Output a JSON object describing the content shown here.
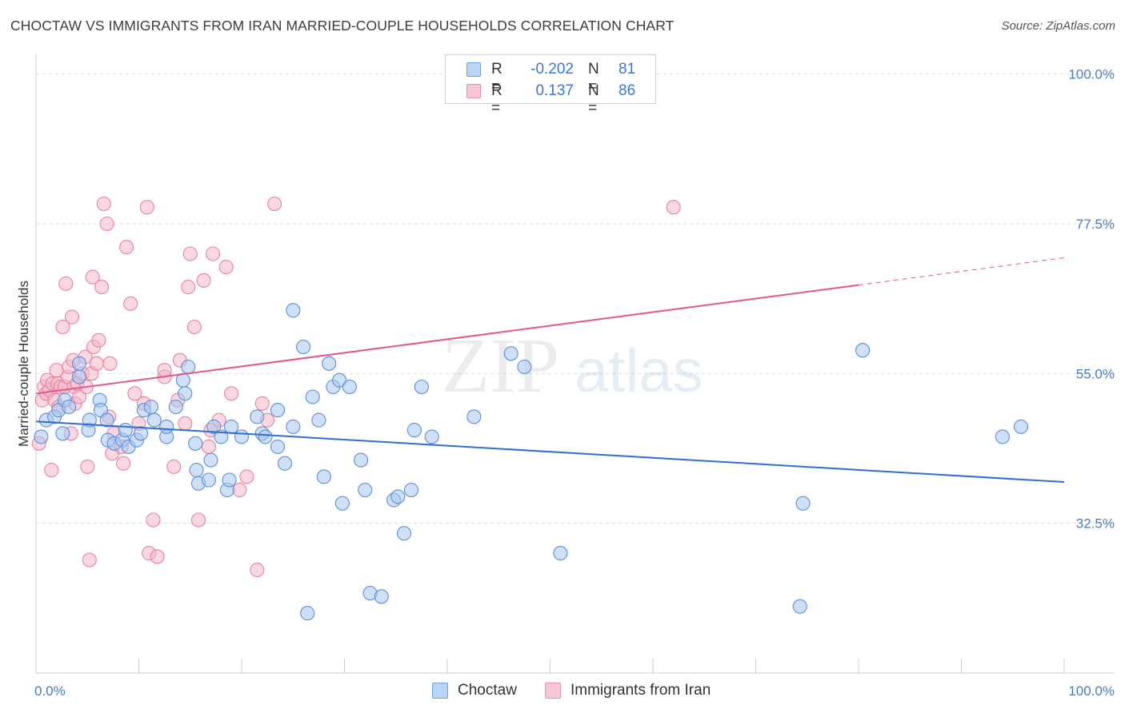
{
  "title": "CHOCTAW VS IMMIGRANTS FROM IRAN MARRIED-COUPLE HOUSEHOLDS CORRELATION CHART",
  "source": "Source: ZipAtlas.com",
  "watermark": {
    "zip": "ZIP",
    "atlas": "atlas"
  },
  "legend": {
    "r_label": "R =",
    "n_label": "N =",
    "rows": [
      {
        "r": "-0.202",
        "n": "81"
      },
      {
        "r": "0.137",
        "n": "86"
      }
    ]
  },
  "colors": {
    "choctaw_fill": "#a9c6ef",
    "choctaw_stroke": "#5b8fd9",
    "choctaw_line": "#2f6fd0",
    "iran_fill": "#f4b8cb",
    "iran_stroke": "#e7839f",
    "iran_line": "#e0588a",
    "axis_label": "#4a7ac7",
    "grid": "#dcdcdc"
  },
  "chart_data": {
    "type": "scatter",
    "xlabel": "",
    "ylabel": "Married-couple Households",
    "xlim": [
      0,
      100
    ],
    "ylim": [
      10,
      102
    ],
    "x_tick_labels": [
      "0.0%",
      "100.0%"
    ],
    "y_ticks": [
      {
        "value": 100,
        "label": "100.0%"
      },
      {
        "value": 77.5,
        "label": "77.5%"
      },
      {
        "value": 55,
        "label": "55.0%"
      },
      {
        "value": 32.5,
        "label": "32.5%"
      }
    ],
    "grid": "horizontal dashed",
    "series": [
      {
        "name": "Choctaw",
        "trend": {
          "x0": 0,
          "y0": 47.8,
          "x1": 100,
          "y1": 38.7
        },
        "points": [
          [
            0.5,
            45.5
          ],
          [
            1,
            48
          ],
          [
            1.8,
            48.5
          ],
          [
            2.2,
            49.5
          ],
          [
            2.6,
            46
          ],
          [
            2.8,
            51
          ],
          [
            3.2,
            50
          ],
          [
            4.2,
            54.5
          ],
          [
            4.2,
            56.5
          ],
          [
            5.1,
            46.5
          ],
          [
            5.2,
            48
          ],
          [
            6.2,
            51
          ],
          [
            6.3,
            49.5
          ],
          [
            6.9,
            48
          ],
          [
            7.0,
            45
          ],
          [
            7.6,
            44.5
          ],
          [
            8.4,
            45
          ],
          [
            8.7,
            46.5
          ],
          [
            9.0,
            44
          ],
          [
            9.8,
            45
          ],
          [
            10.2,
            46
          ],
          [
            10.5,
            49.5
          ],
          [
            11.2,
            50
          ],
          [
            11.5,
            48
          ],
          [
            12.7,
            45.5
          ],
          [
            12.7,
            47
          ],
          [
            13.6,
            50
          ],
          [
            14.5,
            52
          ],
          [
            14.8,
            56
          ],
          [
            14.3,
            54
          ],
          [
            15.5,
            44.5
          ],
          [
            15.6,
            40.5
          ],
          [
            15.8,
            38.5
          ],
          [
            17.0,
            42
          ],
          [
            16.8,
            39
          ],
          [
            17.3,
            47
          ],
          [
            18.0,
            45.5
          ],
          [
            18.6,
            37.5
          ],
          [
            18.8,
            39
          ],
          [
            19.0,
            47
          ],
          [
            20.0,
            45.5
          ],
          [
            21.5,
            48.5
          ],
          [
            22.0,
            46
          ],
          [
            22.3,
            45.5
          ],
          [
            23.5,
            44
          ],
          [
            23.5,
            49.5
          ],
          [
            24.2,
            41.5
          ],
          [
            25.0,
            64.5
          ],
          [
            25.0,
            47
          ],
          [
            26.0,
            59
          ],
          [
            26.4,
            19
          ],
          [
            26.9,
            51.5
          ],
          [
            27.5,
            48
          ],
          [
            28.0,
            39.5
          ],
          [
            28.5,
            56.5
          ],
          [
            28.9,
            53
          ],
          [
            29.5,
            54
          ],
          [
            29.8,
            35.5
          ],
          [
            30.5,
            53
          ],
          [
            31.6,
            42
          ],
          [
            32.0,
            37.5
          ],
          [
            32.5,
            22
          ],
          [
            33.6,
            21.5
          ],
          [
            34.8,
            36
          ],
          [
            35.2,
            36.5
          ],
          [
            35.8,
            31
          ],
          [
            36.5,
            37.5
          ],
          [
            36.8,
            46.5
          ],
          [
            37.5,
            53
          ],
          [
            38.5,
            45.5
          ],
          [
            42.6,
            48.5
          ],
          [
            46.2,
            58
          ],
          [
            47.5,
            56
          ],
          [
            51,
            28
          ],
          [
            74.3,
            20
          ],
          [
            74.6,
            35.5
          ],
          [
            80.4,
            58.5
          ],
          [
            94,
            45.5
          ],
          [
            95.8,
            47
          ]
        ]
      },
      {
        "name": "Immigrants from Iran",
        "trend": {
          "x0": 0,
          "y0": 52,
          "x1": 80,
          "y1": 68.3
        },
        "trend_extension": {
          "x0": 80,
          "y0": 68.3,
          "x1": 100,
          "y1": 72.4
        },
        "points": [
          [
            0.3,
            44.5
          ],
          [
            0.6,
            51
          ],
          [
            0.8,
            53
          ],
          [
            1.0,
            52
          ],
          [
            1.1,
            54
          ],
          [
            1.3,
            52.5
          ],
          [
            1.5,
            40.5
          ],
          [
            1.6,
            53.5
          ],
          [
            1.8,
            51
          ],
          [
            2.0,
            55.5
          ],
          [
            2.1,
            53.5
          ],
          [
            2.2,
            50
          ],
          [
            2.4,
            53
          ],
          [
            2.6,
            62
          ],
          [
            2.8,
            53
          ],
          [
            2.9,
            68.5
          ],
          [
            3.1,
            54.5
          ],
          [
            3.2,
            56
          ],
          [
            3.4,
            46
          ],
          [
            3.5,
            63.5
          ],
          [
            3.6,
            57
          ],
          [
            3.7,
            53
          ],
          [
            3.8,
            50.5
          ],
          [
            4.0,
            53.5
          ],
          [
            4.2,
            51.5
          ],
          [
            4.5,
            55
          ],
          [
            4.8,
            57.5
          ],
          [
            4.9,
            53
          ],
          [
            5.0,
            41
          ],
          [
            5.2,
            27
          ],
          [
            5.4,
            55
          ],
          [
            5.5,
            69.5
          ],
          [
            5.6,
            59
          ],
          [
            5.9,
            56.5
          ],
          [
            6.1,
            60
          ],
          [
            6.4,
            68
          ],
          [
            6.6,
            80.5
          ],
          [
            6.9,
            77.5
          ],
          [
            7.1,
            48.5
          ],
          [
            7.2,
            56.5
          ],
          [
            7.4,
            43
          ],
          [
            7.6,
            46
          ],
          [
            8.3,
            44
          ],
          [
            8.5,
            41.5
          ],
          [
            8.8,
            74
          ],
          [
            9.2,
            65.5
          ],
          [
            9.6,
            52
          ],
          [
            10.0,
            47.5
          ],
          [
            10.5,
            50.5
          ],
          [
            10.8,
            80
          ],
          [
            11.0,
            28
          ],
          [
            11.4,
            33
          ],
          [
            11.8,
            27.5
          ],
          [
            12.5,
            54.5
          ],
          [
            12.5,
            55.5
          ],
          [
            13.4,
            41
          ],
          [
            13.8,
            51
          ],
          [
            14.0,
            57
          ],
          [
            14.5,
            47.5
          ],
          [
            14.8,
            68
          ],
          [
            15.0,
            73
          ],
          [
            15.4,
            62
          ],
          [
            15.8,
            33
          ],
          [
            16.3,
            69
          ],
          [
            16.8,
            44
          ],
          [
            17.0,
            46.5
          ],
          [
            17.2,
            73
          ],
          [
            17.8,
            48
          ],
          [
            18.5,
            71
          ],
          [
            19.0,
            52
          ],
          [
            19.8,
            37.5
          ],
          [
            20.5,
            39.5
          ],
          [
            21.5,
            25.5
          ],
          [
            22.0,
            50.5
          ],
          [
            22.5,
            48
          ],
          [
            23.2,
            80.5
          ],
          [
            62,
            80
          ]
        ]
      }
    ]
  }
}
